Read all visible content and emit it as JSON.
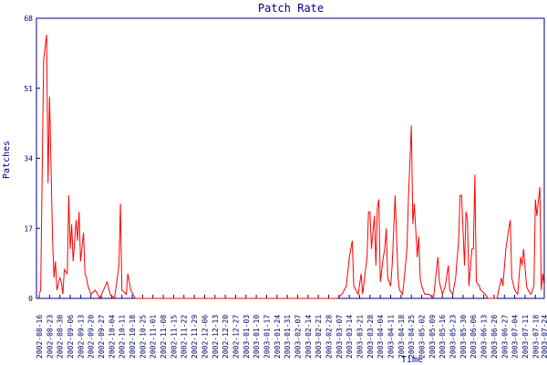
{
  "chart_data": {
    "type": "line",
    "title": "Patch Rate",
    "x_label": "Time",
    "y_label": "Patches",
    "x": [
      "2002-08-16",
      "2002-08-17",
      "2002-08-19",
      "2002-08-21",
      "2002-08-22",
      "2002-08-23",
      "2002-08-25",
      "2002-08-26",
      "2002-08-27",
      "2002-08-28",
      "2002-08-30",
      "2002-08-31",
      "2002-09-01",
      "2002-09-02",
      "2002-09-04",
      "2002-09-05",
      "2002-09-06",
      "2002-09-07",
      "2002-09-08",
      "2002-09-10",
      "2002-09-11",
      "2002-09-12",
      "2002-09-13",
      "2002-09-15",
      "2002-09-16",
      "2002-09-17",
      "2002-09-18",
      "2002-09-20",
      "2002-09-23",
      "2002-09-26",
      "2002-10-01",
      "2002-10-03",
      "2002-10-06",
      "2002-10-09",
      "2002-10-10",
      "2002-10-11",
      "2002-10-14",
      "2002-10-15",
      "2002-10-17",
      "2002-10-20",
      "2003-03-06",
      "2003-03-09",
      "2003-03-12",
      "2003-03-14",
      "2003-03-16",
      "2003-03-17",
      "2003-03-20",
      "2003-03-22",
      "2003-03-23",
      "2003-03-26",
      "2003-03-27",
      "2003-03-28",
      "2003-03-29",
      "2003-03-31",
      "2003-04-01",
      "2003-04-02",
      "2003-04-03",
      "2003-04-04",
      "2003-04-06",
      "2003-04-07",
      "2003-04-08",
      "2003-04-09",
      "2003-04-11",
      "2003-04-12",
      "2003-04-13",
      "2003-04-14",
      "2003-04-16",
      "2003-04-17",
      "2003-04-19",
      "2003-04-20",
      "2003-04-22",
      "2003-04-23",
      "2003-04-24",
      "2003-04-25",
      "2003-04-26",
      "2003-04-27",
      "2003-04-29",
      "2003-04-30",
      "2003-05-01",
      "2003-05-02",
      "2003-05-04",
      "2003-05-07",
      "2003-05-10",
      "2003-05-12",
      "2003-05-13",
      "2003-05-14",
      "2003-05-16",
      "2003-05-18",
      "2003-05-20",
      "2003-05-21",
      "2003-05-23",
      "2003-05-25",
      "2003-05-27",
      "2003-05-28",
      "2003-05-29",
      "2003-05-31",
      "2003-06-01",
      "2003-06-02",
      "2003-06-03",
      "2003-06-05",
      "2003-06-06",
      "2003-06-07",
      "2003-06-08",
      "2003-06-10",
      "2003-06-11",
      "2003-06-14",
      "2003-06-16",
      "2003-06-22",
      "2003-06-25",
      "2003-06-26",
      "2003-06-28",
      "2003-06-30",
      "2003-07-01",
      "2003-07-02",
      "2003-07-04",
      "2003-07-06",
      "2003-07-08",
      "2003-07-09",
      "2003-07-10",
      "2003-07-12",
      "2003-07-13",
      "2003-07-15",
      "2003-07-17",
      "2003-07-18",
      "2003-07-19",
      "2003-07-21",
      "2003-07-22",
      "2003-07-23",
      "2003-07-24"
    ],
    "series": [
      {
        "name": "Patches",
        "color": "#ff0000",
        "values": [
          1,
          2,
          58,
          64,
          28,
          49,
          15,
          5,
          9,
          2,
          5,
          4,
          1,
          7,
          6,
          25,
          12,
          18,
          9,
          19,
          14,
          21,
          9,
          16,
          6,
          5,
          3,
          1,
          2,
          0,
          4,
          1,
          0,
          8,
          23,
          2,
          1,
          6,
          2,
          0,
          0,
          1,
          3,
          10,
          14,
          3,
          1,
          6,
          1,
          10,
          21,
          21,
          12,
          20,
          8,
          22,
          24,
          4,
          10,
          12,
          17,
          5,
          3,
          8,
          16,
          25,
          5,
          2,
          1,
          4,
          12,
          24,
          33,
          42,
          18,
          23,
          10,
          15,
          5,
          3,
          1,
          1,
          0,
          7,
          10,
          4,
          1,
          3,
          8,
          2,
          1,
          5,
          14,
          25,
          25,
          8,
          21,
          19,
          3,
          12,
          12,
          30,
          4,
          3,
          2,
          1,
          0,
          0,
          5,
          3,
          12,
          17,
          19,
          5,
          2,
          1,
          10,
          8,
          12,
          3,
          2,
          1,
          3,
          24,
          20,
          27,
          2,
          6,
          3
        ]
      }
    ],
    "xlim": [
      "2002-08-16",
      "2003-07-24"
    ],
    "xticks": [
      "2002-08-16",
      "2002-08-23",
      "2002-08-30",
      "2002-09-06",
      "2002-09-13",
      "2002-09-20",
      "2002-09-27",
      "2002-10-04",
      "2002-10-11",
      "2002-10-18",
      "2002-10-25",
      "2002-11-01",
      "2002-11-08",
      "2002-11-15",
      "2002-11-22",
      "2002-11-29",
      "2002-12-06",
      "2002-12-13",
      "2002-12-20",
      "2002-12-27",
      "2003-01-03",
      "2003-01-10",
      "2003-01-17",
      "2003-01-24",
      "2003-01-31",
      "2003-02-07",
      "2003-02-14",
      "2003-02-21",
      "2003-02-28",
      "2003-03-07",
      "2003-03-14",
      "2003-03-21",
      "2003-03-28",
      "2003-04-04",
      "2003-04-11",
      "2003-04-18",
      "2003-04-25",
      "2003-05-02",
      "2003-05-09",
      "2003-05-16",
      "2003-05-23",
      "2003-05-30",
      "2003-06-06",
      "2003-06-13",
      "2003-06-20",
      "2003-06-27",
      "2003-07-04",
      "2003-07-11",
      "2003-07-18",
      "2003-07-24"
    ],
    "ylim": [
      0,
      68
    ],
    "yticks": [
      0,
      17,
      34,
      51,
      68
    ],
    "grid": false
  }
}
